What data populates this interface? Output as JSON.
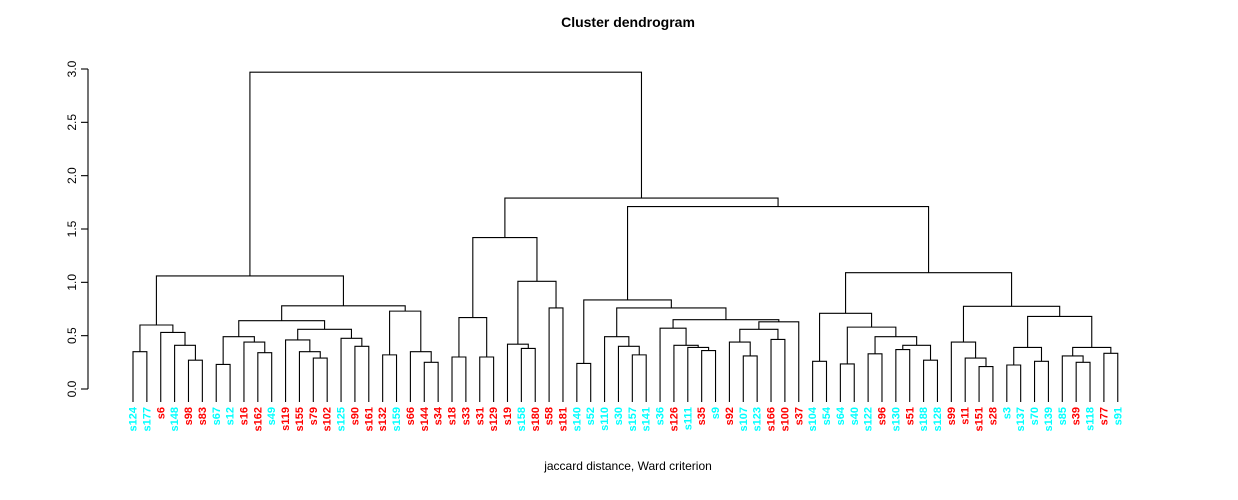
{
  "chart_data": {
    "type": "dendrogram",
    "title": "Cluster dendrogram",
    "xlabel": "jaccard distance, Ward criterion",
    "ylabel": "",
    "ylim": [
      0,
      3
    ],
    "y_ticks": [
      "0.0",
      "0.5",
      "1.0",
      "1.5",
      "2.0",
      "2.5",
      "3.0"
    ],
    "grid": false,
    "line_color": "#000000",
    "label_colors": {
      "cyan": "#00ffff",
      "red": "#ff0000"
    },
    "leaves": [
      {
        "label": "s124",
        "color": "cyan"
      },
      {
        "label": "s177",
        "color": "cyan"
      },
      {
        "label": "s6",
        "color": "red"
      },
      {
        "label": "s148",
        "color": "cyan"
      },
      {
        "label": "s98",
        "color": "red"
      },
      {
        "label": "s83",
        "color": "red"
      },
      {
        "label": "s67",
        "color": "cyan"
      },
      {
        "label": "s12",
        "color": "cyan"
      },
      {
        "label": "s16",
        "color": "red"
      },
      {
        "label": "s162",
        "color": "red"
      },
      {
        "label": "s49",
        "color": "cyan"
      },
      {
        "label": "s119",
        "color": "red"
      },
      {
        "label": "s155",
        "color": "red"
      },
      {
        "label": "s79",
        "color": "red"
      },
      {
        "label": "s102",
        "color": "red"
      },
      {
        "label": "s125",
        "color": "cyan"
      },
      {
        "label": "s90",
        "color": "red"
      },
      {
        "label": "s161",
        "color": "red"
      },
      {
        "label": "s132",
        "color": "red"
      },
      {
        "label": "s159",
        "color": "cyan"
      },
      {
        "label": "s66",
        "color": "red"
      },
      {
        "label": "s144",
        "color": "red"
      },
      {
        "label": "s34",
        "color": "red"
      },
      {
        "label": "s18",
        "color": "red"
      },
      {
        "label": "s33",
        "color": "red"
      },
      {
        "label": "s31",
        "color": "red"
      },
      {
        "label": "s129",
        "color": "red"
      },
      {
        "label": "s19",
        "color": "red"
      },
      {
        "label": "s158",
        "color": "cyan"
      },
      {
        "label": "s180",
        "color": "red"
      },
      {
        "label": "s58",
        "color": "red"
      },
      {
        "label": "s181",
        "color": "red"
      },
      {
        "label": "s140",
        "color": "cyan"
      },
      {
        "label": "s52",
        "color": "cyan"
      },
      {
        "label": "s110",
        "color": "cyan"
      },
      {
        "label": "s30",
        "color": "cyan"
      },
      {
        "label": "s157",
        "color": "cyan"
      },
      {
        "label": "s141",
        "color": "cyan"
      },
      {
        "label": "s36",
        "color": "cyan"
      },
      {
        "label": "s126",
        "color": "red"
      },
      {
        "label": "s111",
        "color": "cyan"
      },
      {
        "label": "s35",
        "color": "red"
      },
      {
        "label": "s9",
        "color": "cyan"
      },
      {
        "label": "s92",
        "color": "red"
      },
      {
        "label": "s107",
        "color": "cyan"
      },
      {
        "label": "s123",
        "color": "cyan"
      },
      {
        "label": "s166",
        "color": "red"
      },
      {
        "label": "s100",
        "color": "red"
      },
      {
        "label": "s37",
        "color": "red"
      },
      {
        "label": "s104",
        "color": "cyan"
      },
      {
        "label": "s54",
        "color": "cyan"
      },
      {
        "label": "s64",
        "color": "cyan"
      },
      {
        "label": "s40",
        "color": "cyan"
      },
      {
        "label": "s122",
        "color": "cyan"
      },
      {
        "label": "s96",
        "color": "red"
      },
      {
        "label": "s130",
        "color": "cyan"
      },
      {
        "label": "s51",
        "color": "red"
      },
      {
        "label": "s188",
        "color": "cyan"
      },
      {
        "label": "s128",
        "color": "cyan"
      },
      {
        "label": "s99",
        "color": "red"
      },
      {
        "label": "s11",
        "color": "red"
      },
      {
        "label": "s151",
        "color": "red"
      },
      {
        "label": "s28",
        "color": "red"
      },
      {
        "label": "s3",
        "color": "cyan"
      },
      {
        "label": "s137",
        "color": "cyan"
      },
      {
        "label": "s70",
        "color": "cyan"
      },
      {
        "label": "s139",
        "color": "cyan"
      },
      {
        "label": "s85",
        "color": "cyan"
      },
      {
        "label": "s39",
        "color": "red"
      },
      {
        "label": "s118",
        "color": "cyan"
      },
      {
        "label": "s77",
        "color": "red"
      },
      {
        "label": "s91",
        "color": "cyan"
      }
    ],
    "tree": {
      "h": 2.97,
      "c": [
        {
          "h": 1.06,
          "c": [
            {
              "h": 0.6,
              "c": [
                {
                  "h": 0.35,
                  "c": [
                    0,
                    1
                  ]
                },
                {
                  "h": 0.53,
                  "c": [
                    2,
                    {
                      "h": 0.41,
                      "c": [
                        3,
                        {
                          "h": 0.27,
                          "c": [
                            4,
                            5
                          ]
                        }
                      ]
                    }
                  ]
                }
              ]
            },
            {
              "h": 0.78,
              "c": [
                {
                  "h": 0.64,
                  "c": [
                    {
                      "h": 0.49,
                      "c": [
                        {
                          "h": 0.23,
                          "c": [
                            6,
                            7
                          ]
                        },
                        {
                          "h": 0.44,
                          "c": [
                            8,
                            {
                              "h": 0.34,
                              "c": [
                                9,
                                10
                              ]
                            }
                          ]
                        }
                      ]
                    },
                    {
                      "h": 0.56,
                      "c": [
                        {
                          "h": 0.46,
                          "c": [
                            11,
                            {
                              "h": 0.35,
                              "c": [
                                12,
                                {
                                  "h": 0.29,
                                  "c": [
                                    13,
                                    14
                                  ]
                                }
                              ]
                            }
                          ]
                        },
                        {
                          "h": 0.475,
                          "c": [
                            15,
                            {
                              "h": 0.4,
                              "c": [
                                16,
                                17
                              ]
                            }
                          ]
                        }
                      ]
                    }
                  ]
                },
                {
                  "h": 0.73,
                  "c": [
                    {
                      "h": 0.32,
                      "c": [
                        18,
                        19
                      ]
                    },
                    {
                      "h": 0.35,
                      "c": [
                        20,
                        {
                          "h": 0.25,
                          "c": [
                            21,
                            22
                          ]
                        }
                      ]
                    }
                  ]
                }
              ]
            }
          ]
        },
        {
          "h": 1.79,
          "c": [
            {
              "h": 1.42,
              "c": [
                {
                  "h": 0.67,
                  "c": [
                    {
                      "h": 0.3,
                      "c": [
                        23,
                        24
                      ]
                    },
                    {
                      "h": 0.3,
                      "c": [
                        25,
                        26
                      ]
                    }
                  ]
                },
                {
                  "h": 1.01,
                  "c": [
                    {
                      "h": 0.42,
                      "c": [
                        27,
                        {
                          "h": 0.38,
                          "c": [
                            28,
                            29
                          ]
                        }
                      ]
                    },
                    {
                      "h": 0.76,
                      "c": [
                        30,
                        31
                      ]
                    }
                  ]
                }
              ]
            },
            {
              "h": 1.71,
              "c": [
                {
                  "h": 0.835,
                  "c": [
                    {
                      "h": 0.24,
                      "c": [
                        32,
                        33
                      ]
                    },
                    {
                      "h": 0.76,
                      "c": [
                        {
                          "h": 0.49,
                          "c": [
                            34,
                            {
                              "h": 0.4,
                              "c": [
                                35,
                                {
                                  "h": 0.32,
                                  "c": [
                                    36,
                                    37
                                  ]
                                }
                              ]
                            }
                          ]
                        },
                        {
                          "h": 0.65,
                          "c": [
                            {
                              "h": 0.57,
                              "c": [
                                38,
                                {
                                  "h": 0.41,
                                  "c": [
                                    39,
                                    {
                                      "h": 0.39,
                                      "c": [
                                        40,
                                        {
                                          "h": 0.36,
                                          "c": [
                                            41,
                                            42
                                          ]
                                        }
                                      ]
                                    }
                                  ]
                                }
                              ]
                            },
                            {
                              "h": 0.63,
                              "c": [
                                {
                                  "h": 0.56,
                                  "c": [
                                    {
                                      "h": 0.44,
                                      "c": [
                                        43,
                                        {
                                          "h": 0.31,
                                          "c": [
                                            44,
                                            45
                                          ]
                                        }
                                      ]
                                    },
                                    {
                                      "h": 0.465,
                                      "c": [
                                        46,
                                        47
                                      ]
                                    }
                                  ]
                                },
                                48
                              ]
                            }
                          ]
                        }
                      ]
                    }
                  ]
                },
                {
                  "h": 1.09,
                  "c": [
                    {
                      "h": 0.71,
                      "c": [
                        {
                          "h": 0.26,
                          "c": [
                            49,
                            50
                          ]
                        },
                        {
                          "h": 0.58,
                          "c": [
                            {
                              "h": 0.235,
                              "c": [
                                51,
                                52
                              ]
                            },
                            {
                              "h": 0.49,
                              "c": [
                                {
                                  "h": 0.33,
                                  "c": [
                                    53,
                                    54
                                  ]
                                },
                                {
                                  "h": 0.41,
                                  "c": [
                                    {
                                      "h": 0.37,
                                      "c": [
                                        55,
                                        56
                                      ]
                                    },
                                    {
                                      "h": 0.27,
                                      "c": [
                                        57,
                                        58
                                      ]
                                    }
                                  ]
                                }
                              ]
                            }
                          ]
                        }
                      ]
                    },
                    {
                      "h": 0.775,
                      "c": [
                        {
                          "h": 0.44,
                          "c": [
                            59,
                            {
                              "h": 0.29,
                              "c": [
                                60,
                                {
                                  "h": 0.21,
                                  "c": [
                                    61,
                                    62
                                  ]
                                }
                              ]
                            }
                          ]
                        },
                        {
                          "h": 0.68,
                          "c": [
                            {
                              "h": 0.39,
                              "c": [
                                {
                                  "h": 0.225,
                                  "c": [
                                    63,
                                    64
                                  ]
                                },
                                {
                                  "h": 0.26,
                                  "c": [
                                    65,
                                    66
                                  ]
                                }
                              ]
                            },
                            {
                              "h": 0.39,
                              "c": [
                                {
                                  "h": 0.31,
                                  "c": [
                                    67,
                                    {
                                      "h": 0.25,
                                      "c": [
                                        68,
                                        69
                                      ]
                                    }
                                  ]
                                },
                                {
                                  "h": 0.335,
                                  "c": [
                                    70,
                                    71
                                  ]
                                }
                              ]
                            }
                          ]
                        }
                      ]
                    }
                  ]
                }
              ]
            }
          ]
        }
      ]
    }
  }
}
